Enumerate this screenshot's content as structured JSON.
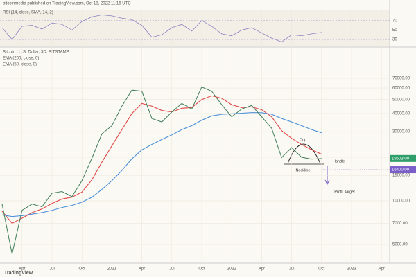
{
  "chart_data": {
    "type": "line",
    "header": "bitcoinmedia published on TradingView.com, Oct 18, 2022 11:16 UTC",
    "title": "Bitcoin / U.S. Dollar, 3D, BITSTAMP",
    "footer": "TradingView",
    "categories": [
      null,
      null,
      "Apr",
      null,
      null,
      "Jul",
      null,
      null,
      "Oct",
      null,
      null,
      "2021",
      null,
      null,
      "Apr",
      null,
      null,
      "Jul",
      null,
      null,
      "Oct",
      null,
      null,
      "2022",
      null,
      null,
      "Apr",
      null,
      null,
      "Jul",
      null,
      null,
      "Oct",
      null,
      null,
      "2023",
      null,
      null,
      "Apr"
    ],
    "series": [
      {
        "name": "Bitcoin / U.S. Dollar",
        "color": "#3f7d5a",
        "values": [
          9500,
          4300,
          8600,
          9500,
          9100,
          11300,
          11600,
          10700,
          13800,
          19700,
          29000,
          33000,
          45000,
          58000,
          57000,
          37000,
          35000,
          41000,
          47000,
          43000,
          61000,
          57000,
          46000,
          38000,
          43000,
          45500,
          38000,
          31700,
          19900,
          23300,
          20000,
          19400,
          19600,
          null,
          null,
          null,
          null,
          null,
          null
        ]
      },
      {
        "name": "EMA (200, close, 0)",
        "color": "#4a90d9",
        "values": [
          8000,
          7800,
          7900,
          8100,
          8300,
          8600,
          9000,
          9300,
          9800,
          10600,
          12000,
          13800,
          16200,
          19500,
          22500,
          24500,
          26500,
          28500,
          31000,
          33000,
          36000,
          38500,
          39500,
          39800,
          40200,
          40600,
          40500,
          39500,
          37000,
          35000,
          33000,
          31000,
          29500,
          null,
          null,
          null,
          null,
          null,
          null
        ]
      },
      {
        "name": "EMA (50, close, 0)",
        "color": "#e04848",
        "values": [
          8500,
          7000,
          7600,
          8300,
          8800,
          9600,
          10300,
          10600,
          11500,
          14000,
          18500,
          24000,
          31000,
          40000,
          47000,
          45000,
          42000,
          41000,
          43500,
          44000,
          50000,
          53000,
          51000,
          46000,
          44000,
          44500,
          42500,
          38000,
          30500,
          27000,
          24500,
          22500,
          21000,
          null,
          null,
          null,
          null,
          null,
          null
        ]
      }
    ],
    "ylim": [
      3800,
      110000
    ],
    "log_scale": true,
    "yticks": [
      {
        "value": 5000,
        "label": "5000.00"
      },
      {
        "value": 7000,
        "label": "7000.00"
      },
      {
        "value": 10000,
        "label": "10000.00"
      },
      {
        "value": 15000,
        "label": "15000.00"
      },
      {
        "value": 20000,
        "label": "20000.00"
      },
      {
        "value": 30000,
        "label": "30000.00"
      },
      {
        "value": 40000,
        "label": "40000.00"
      },
      {
        "value": 50000,
        "label": "50000.00"
      },
      {
        "value": 60000,
        "label": "60000.00"
      },
      {
        "value": 70000,
        "label": "70000.00"
      }
    ],
    "grid": true,
    "current_price": {
      "value": 19603,
      "label": "19603.00",
      "color": "#2e9e6a"
    },
    "profit_target": {
      "value": 16400,
      "label": "16400.00",
      "color": "#7b5fc9"
    },
    "annotations": [
      "Cup",
      "Handle",
      "Neckline",
      "Profit Target"
    ],
    "rsi": {
      "name": "RSI (14, close, SMA, 14, 2)",
      "color": "#8a7fc2",
      "values": [
        55,
        30,
        58,
        60,
        52,
        65,
        62,
        50,
        68,
        78,
        82,
        80,
        75,
        72,
        60,
        35,
        40,
        55,
        62,
        48,
        70,
        58,
        42,
        38,
        50,
        55,
        44,
        33,
        25,
        40,
        38,
        42,
        45,
        null,
        null,
        null,
        null,
        null,
        null
      ],
      "ylim": [
        20,
        90
      ],
      "yticks": [
        30,
        50,
        70
      ]
    }
  }
}
